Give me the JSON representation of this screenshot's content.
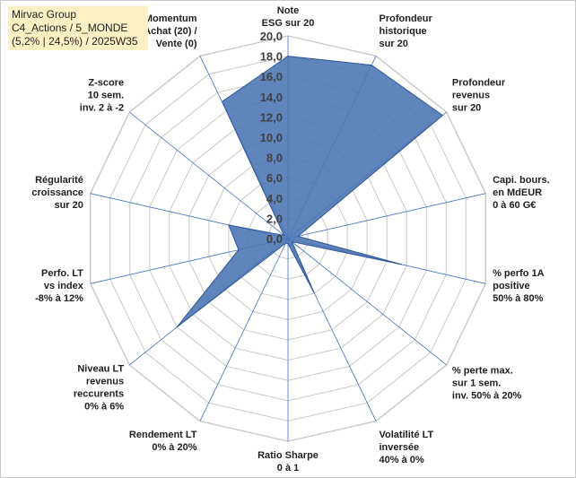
{
  "title": {
    "line1": "Mirvac Group",
    "line2": "C4_Actions / 5_MONDE",
    "line3": "(5,2% | 24,5%) / 2025W35"
  },
  "chart_data": {
    "type": "radar",
    "rmin": 0,
    "rmax": 20,
    "tick_step": 2,
    "ticks": [
      "0,0",
      "2,0",
      "4,0",
      "6,0",
      "8,0",
      "10,0",
      "12,0",
      "14,0",
      "16,0",
      "18,0",
      "20,0"
    ],
    "axes": [
      {
        "label": [
          "Note",
          "ESG sur 20"
        ],
        "value": 18
      },
      {
        "label": [
          "Profondeur",
          "historique",
          "sur 20"
        ],
        "value": 19
      },
      {
        "label": [
          "Profondeur",
          "revenus",
          "sur 20"
        ],
        "value": 19.5
      },
      {
        "label": [
          "Capi. bours.",
          "en MdEUR",
          "0 à 60 G€"
        ],
        "value": 1
      },
      {
        "label": [
          "% perfo 1A",
          "positive",
          "50% à 80%"
        ],
        "value": 11.5
      },
      {
        "label": [
          "% perte max.",
          "sur 1 sem.",
          "inv. 50% à 20%"
        ],
        "value": 0.5
      },
      {
        "label": [
          "Volatilité LT",
          "inversée",
          "40% à 0%"
        ],
        "value": 6
      },
      {
        "label": [
          "Ratio Sharpe",
          "0 à 1"
        ],
        "value": 0.5
      },
      {
        "label": [
          "Rendement LT",
          "0% à 20%"
        ],
        "value": 0.5
      },
      {
        "label": [
          "Niveau LT",
          "revenus",
          "reccurents",
          "0% à 6%"
        ],
        "value": 14
      },
      {
        "label": [
          "Perfo. LT",
          "vs index",
          "-8% à 12%"
        ],
        "value": 5
      },
      {
        "label": [
          "Régularité",
          "croissance",
          "sur 20"
        ],
        "value": 6
      },
      {
        "label": [
          "Z-score",
          "10 sem.",
          "inv. 2 à -2"
        ],
        "value": 0.5
      },
      {
        "label": [
          "Momentum",
          "Achat (20) /",
          "Vente (0)"
        ],
        "value": 15
      }
    ],
    "series": [
      {
        "values": [
          18,
          19,
          19.5,
          1,
          11.5,
          0.5,
          6,
          0.5,
          0.5,
          14,
          5,
          6,
          0.5,
          15
        ]
      }
    ],
    "colors": {
      "fill": "#4a74b4",
      "stroke": "#2e5597",
      "grid": "#c8c8c8",
      "spoke": "#4472c4",
      "label": "#1f1f1f"
    }
  }
}
